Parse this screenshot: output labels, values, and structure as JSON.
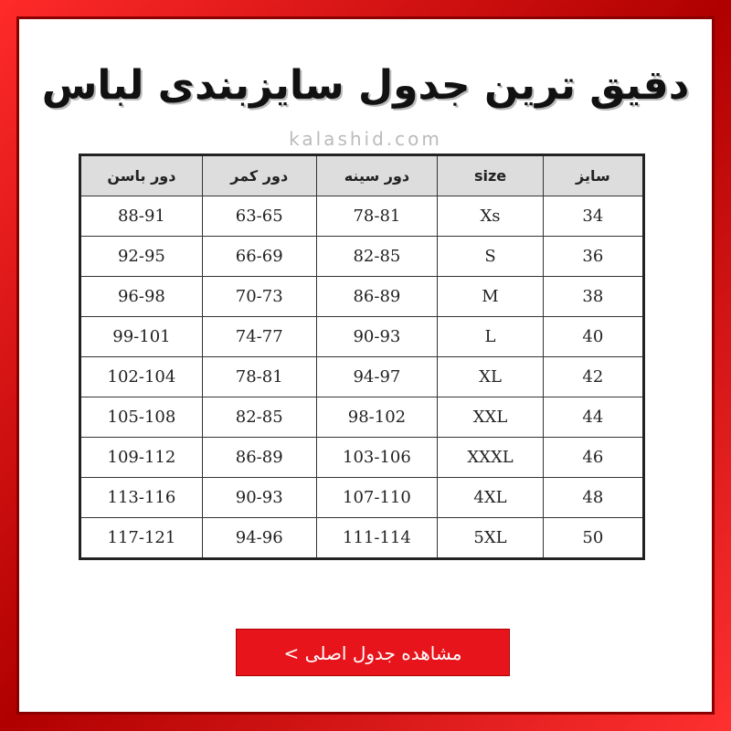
{
  "header": {
    "title": "دقیق ترین جدول سایزبندی لباس",
    "watermark": "kalashid.com"
  },
  "table": {
    "columns": [
      "سایز",
      "size",
      "دور سینه",
      "دور کمر",
      "دور باسن"
    ],
    "rows": [
      [
        34,
        "Xs",
        "78-81",
        "63-65",
        "88-91"
      ],
      [
        36,
        "S",
        "82-85",
        "66-69",
        "92-95"
      ],
      [
        38,
        "M",
        "86-89",
        "70-73",
        "96-98"
      ],
      [
        40,
        "L",
        "90-93",
        "74-77",
        "99-101"
      ],
      [
        42,
        "XL",
        "94-97",
        "78-81",
        "102-104"
      ],
      [
        44,
        "XXL",
        "98-102",
        "82-85",
        "105-108"
      ],
      [
        46,
        "XXXL",
        "103-106",
        "86-89",
        "109-112"
      ],
      [
        48,
        "4XL",
        "107-110",
        "90-93",
        "113-116"
      ],
      [
        50,
        "5XL",
        "111-114",
        "94-96",
        "117-121"
      ]
    ]
  },
  "button": {
    "label": "مشاهده جدول اصلی >"
  }
}
